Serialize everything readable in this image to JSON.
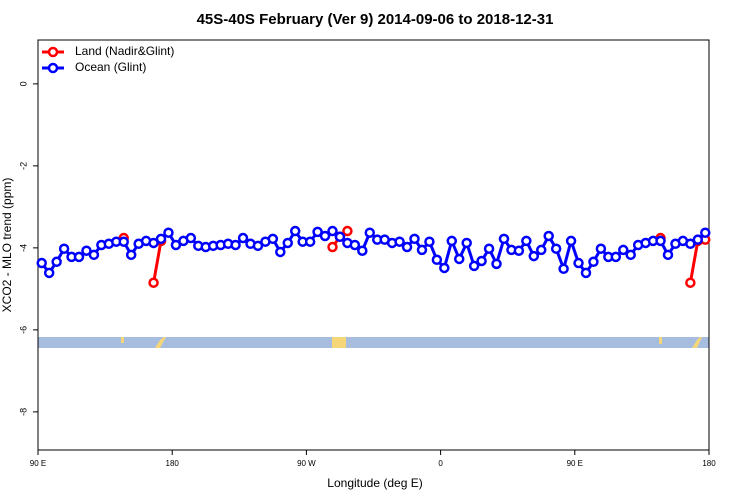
{
  "chart_data": {
    "type": "line",
    "title": "45S-40S February (Ver 9)   2014-09-06 to 2018-12-31",
    "x_label": "Longitude (deg E)",
    "y_label": "XCO2 - MLO trend (ppm)",
    "x": [
      92.5,
      97.5,
      102.5,
      107.5,
      112.5,
      117.5,
      122.5,
      127.5,
      132.5,
      137.5,
      142.5,
      147.5,
      152.5,
      157.5,
      162.5,
      167.5,
      172.5,
      177.5,
      182.5,
      187.5,
      192.5,
      197.5,
      202.5,
      207.5,
      212.5,
      217.5,
      222.5,
      227.5,
      232.5,
      237.5,
      242.5,
      247.5,
      252.5,
      257.5,
      262.5,
      267.5,
      272.5,
      277.5,
      282.5,
      287.5,
      292.5,
      297.5,
      302.5,
      307.5,
      312.5,
      317.5,
      322.5,
      327.5,
      332.5,
      337.5,
      342.5,
      347.5,
      352.5,
      357.5,
      362.5,
      367.5,
      372.5,
      377.5,
      382.5,
      387.5,
      392.5,
      397.5,
      402.5,
      407.5,
      412.5,
      417.5,
      422.5,
      427.5,
      432.5,
      437.5,
      442.5,
      447.5,
      452.5,
      457.5,
      462.5,
      467.5,
      472.5,
      477.5,
      482.5,
      487.5,
      492.5,
      497.5,
      502.5,
      507.5,
      512.5,
      517.5,
      522.5,
      527.5,
      532.5,
      537.5
    ],
    "series": [
      {
        "name": "Land (Nadir&Glint)",
        "color": "#ff0000",
        "values": [
          null,
          null,
          null,
          null,
          null,
          null,
          null,
          null,
          null,
          null,
          null,
          -3.76,
          null,
          null,
          null,
          -4.85,
          -3.83,
          null,
          null,
          null,
          null,
          null,
          null,
          null,
          null,
          null,
          null,
          null,
          null,
          null,
          null,
          null,
          null,
          null,
          null,
          null,
          null,
          null,
          null,
          -3.98,
          -3.73,
          -3.59,
          null,
          null,
          null,
          null,
          null,
          null,
          null,
          null,
          null,
          null,
          null,
          null,
          null,
          null,
          null,
          null,
          null,
          null,
          null,
          null,
          null,
          null,
          null,
          null,
          null,
          null,
          null,
          null,
          null,
          null,
          null,
          null,
          null,
          null,
          null,
          null,
          null,
          null,
          null,
          null,
          null,
          -3.76,
          null,
          null,
          null,
          -4.85,
          -3.83,
          -3.8
        ]
      },
      {
        "name": "Ocean (Glint)",
        "color": "#0000ff",
        "values": [
          -4.37,
          -4.61,
          -4.34,
          -4.02,
          -4.22,
          -4.22,
          -4.07,
          -4.17,
          -3.93,
          -3.9,
          -3.85,
          -3.85,
          -4.17,
          -3.9,
          -3.83,
          -3.88,
          -3.78,
          -3.63,
          -3.93,
          -3.83,
          -3.76,
          -3.95,
          -3.98,
          -3.95,
          -3.93,
          -3.9,
          -3.93,
          -3.76,
          -3.9,
          -3.95,
          -3.85,
          -3.78,
          -4.1,
          -3.88,
          -3.59,
          -3.85,
          -3.85,
          -3.61,
          -3.71,
          -3.59,
          -3.73,
          -3.88,
          -3.93,
          -4.07,
          -3.63,
          -3.8,
          -3.8,
          -3.88,
          -3.85,
          -3.98,
          -3.78,
          -4.05,
          -3.85,
          -4.29,
          -4.49,
          -3.83,
          -4.27,
          -3.88,
          -4.44,
          -4.32,
          -4.02,
          -4.39,
          -3.78,
          -4.05,
          -4.07,
          -3.83,
          -4.2,
          -4.05,
          -3.71,
          -4.02,
          -4.51,
          -3.83,
          -4.37,
          -4.61,
          -4.34,
          -4.02,
          -4.22,
          -4.22,
          -4.05,
          -4.17,
          -3.93,
          -3.88,
          -3.83,
          -3.83,
          -4.17,
          -3.9,
          -3.83,
          -3.9,
          -3.8,
          -3.63
        ]
      }
    ],
    "xlim": [
      90,
      540
    ],
    "xticks": [
      {
        "value": 90,
        "label": "90 E"
      },
      180,
      {
        "value": 270,
        "label": "90 W"
      },
      {
        "value": 360,
        "label": "0"
      },
      {
        "value": 450,
        "label": "90 E"
      },
      {
        "value": 540,
        "label": "180"
      }
    ],
    "ylim": [
      -8.93,
      1.07
    ],
    "yticks": [
      0,
      -2,
      -4,
      -6,
      -8
    ],
    "legend": "top-left"
  }
}
